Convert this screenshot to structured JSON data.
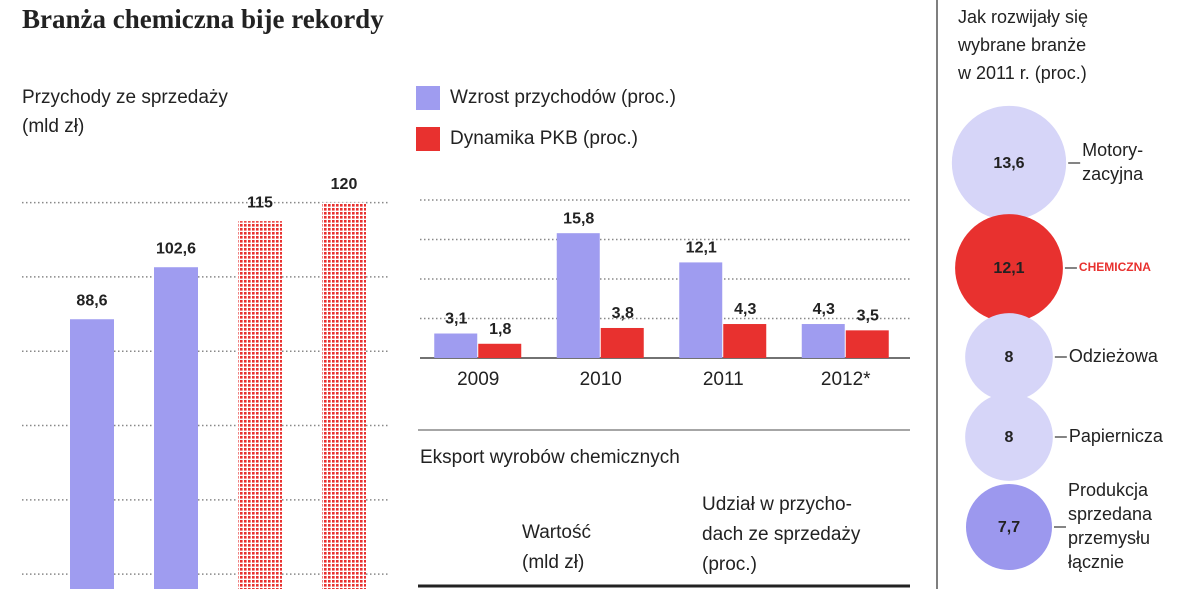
{
  "title": "Branża chemiczna bije rekordy",
  "chart_data": [
    {
      "type": "bar",
      "title_lines": [
        "Przychody ze sprzedaży",
        "(mld zł)"
      ],
      "categories": [
        null,
        null,
        null,
        null
      ],
      "values": [
        88.6,
        102.6,
        115,
        120
      ],
      "value_labels": [
        "88,6",
        "102,6",
        "115",
        "120"
      ],
      "colors": [
        "#9f9cf0",
        "#9f9cf0",
        "#e8312f",
        "#e8312f"
      ],
      "patterns": [
        "solid",
        "solid",
        "dotted",
        "dotted"
      ],
      "ylim": [
        16,
        125
      ],
      "yticks": [
        20,
        40,
        60,
        80,
        100,
        120
      ],
      "grid": true
    },
    {
      "type": "grouped_bar",
      "categories": [
        "2009",
        "2010",
        "2011",
        "2012*"
      ],
      "series": [
        {
          "name": "Wzrost przychodów (proc.)",
          "color": "#9f9cf0",
          "values": [
            3.1,
            15.8,
            12.1,
            4.3
          ],
          "value_labels": [
            "3,1",
            "15,8",
            "12,1",
            "4,3"
          ]
        },
        {
          "name": "Dynamika PKB (proc.)",
          "color": "#e8312f",
          "values": [
            1.8,
            3.8,
            4.3,
            3.5
          ],
          "value_labels": [
            "1,8",
            "3,8",
            "4,3",
            "3,5"
          ]
        }
      ],
      "ylim": [
        0,
        20
      ],
      "yticks": [
        0,
        5,
        10,
        15,
        20
      ],
      "grid": true,
      "legend": "top-left"
    },
    {
      "type": "bubble",
      "title_lines": [
        "Jak rozwijały się",
        "wybrane branże",
        "w 2011 r. (proc.)"
      ],
      "categories": [
        [
          "Motory-",
          "zacyjna"
        ],
        [
          "CHEMICZNA"
        ],
        [
          "Odzieżowa"
        ],
        [
          "Papiernicza"
        ],
        [
          "Produkcja",
          "sprzedana",
          "przemysłu",
          "łącznie"
        ]
      ],
      "values": [
        13.6,
        12.1,
        8,
        8,
        7.7
      ],
      "value_labels": [
        "13,6",
        "12,1",
        "8",
        "8",
        "7,7"
      ],
      "colors": [
        "#d6d5f8",
        "#e8312f",
        "#d6d5f8",
        "#d6d5f8",
        "#9c98ee"
      ],
      "label_colors": [
        "#222222",
        "#e8312f",
        "#222222",
        "#222222",
        "#222222"
      ]
    }
  ],
  "export_table": {
    "title": "Eksport wyrobów chemicznych",
    "columns": [
      [
        "Wartość",
        "(mld zł)"
      ],
      [
        "Udział w przycho-",
        "dach ze sprzedaży",
        "(proc.)"
      ]
    ]
  }
}
